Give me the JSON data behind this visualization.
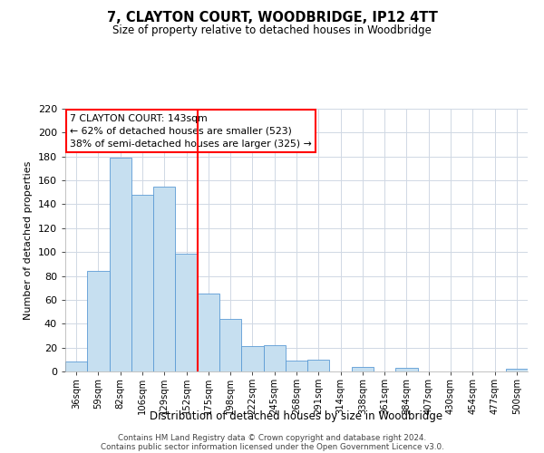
{
  "title": "7, CLAYTON COURT, WOODBRIDGE, IP12 4TT",
  "subtitle": "Size of property relative to detached houses in Woodbridge",
  "xlabel": "Distribution of detached houses by size in Woodbridge",
  "ylabel": "Number of detached properties",
  "bar_labels": [
    "36sqm",
    "59sqm",
    "82sqm",
    "106sqm",
    "129sqm",
    "152sqm",
    "175sqm",
    "198sqm",
    "222sqm",
    "245sqm",
    "268sqm",
    "291sqm",
    "314sqm",
    "338sqm",
    "361sqm",
    "384sqm",
    "407sqm",
    "430sqm",
    "454sqm",
    "477sqm",
    "500sqm"
  ],
  "bar_values": [
    8,
    84,
    179,
    148,
    155,
    99,
    65,
    44,
    21,
    22,
    9,
    10,
    0,
    4,
    0,
    3,
    0,
    0,
    0,
    0,
    2
  ],
  "bar_color": "#c6dff0",
  "bar_edge_color": "#5b9bd5",
  "vline_x": 5.5,
  "vline_color": "red",
  "annotation_line1": "7 CLAYTON COURT: 143sqm",
  "annotation_line2": "← 62% of detached houses are smaller (523)",
  "annotation_line3": "38% of semi-detached houses are larger (325) →",
  "annotation_box_color": "white",
  "annotation_box_edge_color": "red",
  "ylim": [
    0,
    220
  ],
  "yticks": [
    0,
    20,
    40,
    60,
    80,
    100,
    120,
    140,
    160,
    180,
    200,
    220
  ],
  "footer_line1": "Contains HM Land Registry data © Crown copyright and database right 2024.",
  "footer_line2": "Contains public sector information licensed under the Open Government Licence v3.0.",
  "bg_color": "#ffffff",
  "grid_color": "#d0d8e4",
  "title_fontsize": 10.5,
  "subtitle_fontsize": 8.5
}
